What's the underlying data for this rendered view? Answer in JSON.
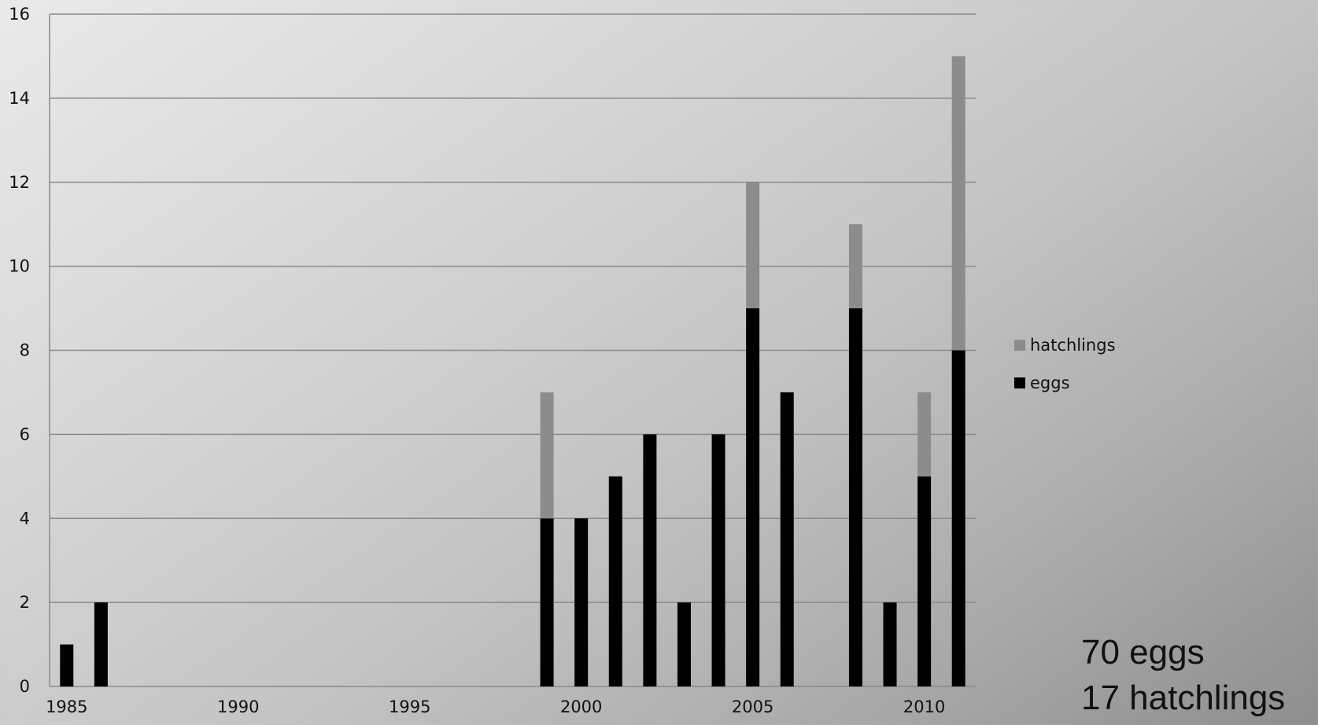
{
  "chart_data": {
    "type": "bar",
    "stacked": true,
    "x": [
      1985,
      1986,
      1999,
      2000,
      2001,
      2002,
      2003,
      2004,
      2005,
      2006,
      2008,
      2009,
      2010,
      2011
    ],
    "series": [
      {
        "name": "eggs",
        "color": "#000000",
        "values": [
          1,
          2,
          4,
          4,
          5,
          6,
          2,
          6,
          9,
          7,
          9,
          2,
          5,
          8
        ]
      },
      {
        "name": "hatchlings",
        "color": "#8c8c8c",
        "values": [
          0,
          0,
          3,
          0,
          0,
          0,
          0,
          0,
          3,
          0,
          2,
          0,
          2,
          7
        ]
      }
    ],
    "xlim": [
      1984.5,
      2011.5
    ],
    "ylim": [
      0,
      16
    ],
    "x_ticks": [
      1985,
      1990,
      1995,
      2000,
      2005,
      2010
    ],
    "y_ticks": [
      0,
      2,
      4,
      6,
      8,
      10,
      12,
      14,
      16
    ],
    "grid": true,
    "legend_position": "right",
    "legend_order": [
      "hatchlings",
      "eggs"
    ]
  },
  "summary": {
    "eggs_text": "70 eggs",
    "hatchlings_text": "17 hatchlings"
  }
}
